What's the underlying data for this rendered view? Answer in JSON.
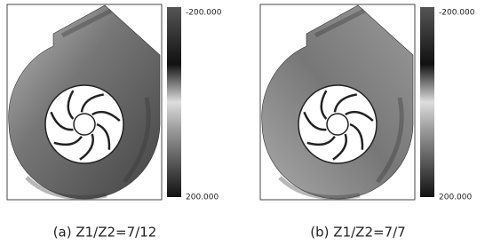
{
  "panels": [
    {
      "colorbar": {
        "top_label": "-200.000",
        "bottom_label": "200.000"
      },
      "caption": "(a) Z1/Z2=7/12"
    },
    {
      "colorbar": {
        "top_label": "-200.000",
        "bottom_label": "200.000"
      },
      "caption": "(b) Z1/Z2=7/7"
    }
  ]
}
